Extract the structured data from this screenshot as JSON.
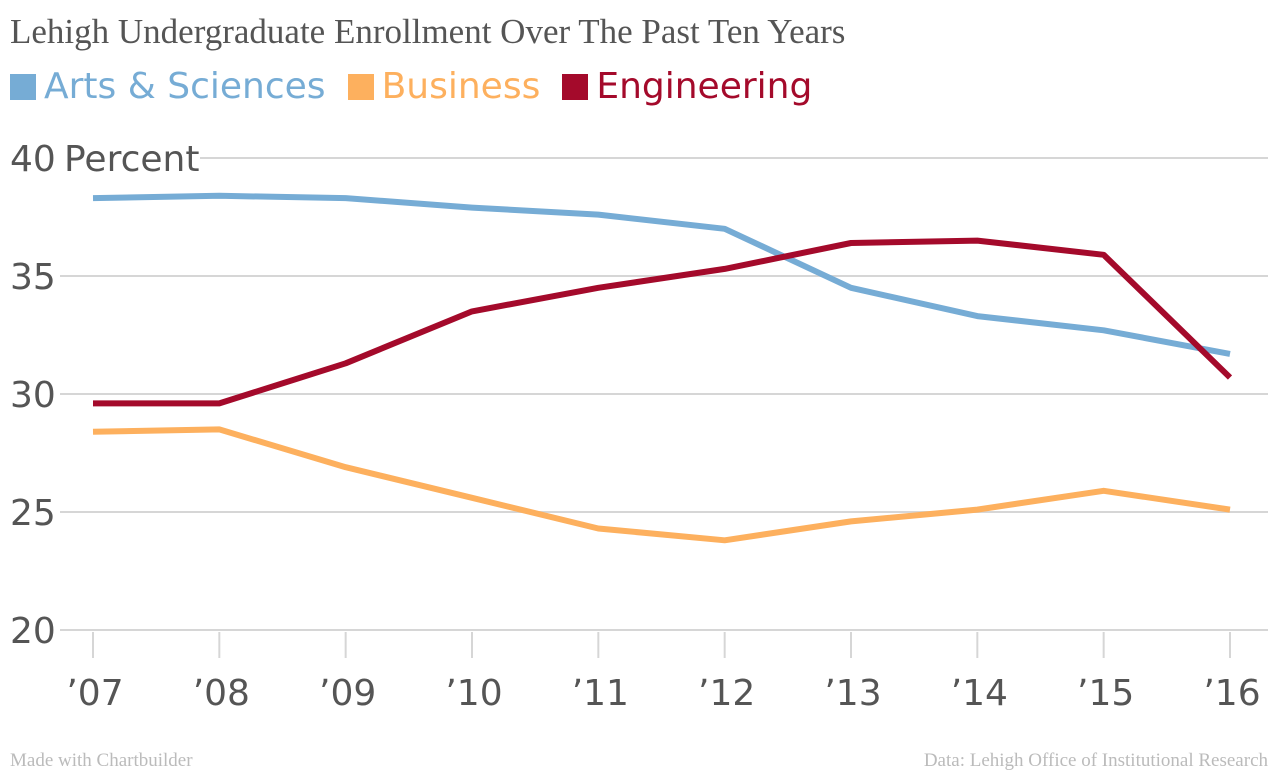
{
  "chart_data": {
    "type": "line",
    "title": "Lehigh Undergraduate Enrollment Over The Past Ten Years",
    "ylabel": "Percent",
    "categories": [
      "’07",
      "’08",
      "’09",
      "’10",
      "’11",
      "’12",
      "’13",
      "’14",
      "’15",
      "’16"
    ],
    "yticks": [
      20,
      25,
      30,
      35,
      40
    ],
    "ylim": [
      20,
      40
    ],
    "grid": true,
    "legend_position": "top-left",
    "series": [
      {
        "name": "Arts & Sciences",
        "color": "#76acd5",
        "values": [
          38.3,
          38.4,
          38.3,
          37.9,
          37.6,
          37.0,
          34.5,
          33.3,
          32.7,
          31.7
        ]
      },
      {
        "name": "Business",
        "color": "#fdb05e",
        "values": [
          28.4,
          28.5,
          26.9,
          25.6,
          24.3,
          23.8,
          24.6,
          25.1,
          25.9,
          25.1
        ]
      },
      {
        "name": "Engineering",
        "color": "#a40a2b",
        "values": [
          29.6,
          29.6,
          31.3,
          33.5,
          34.5,
          35.3,
          36.4,
          36.5,
          35.9,
          30.7
        ]
      }
    ]
  },
  "footer": {
    "left": "Made with Chartbuilder",
    "right": "Data: Lehigh Office of Institutional Research"
  }
}
